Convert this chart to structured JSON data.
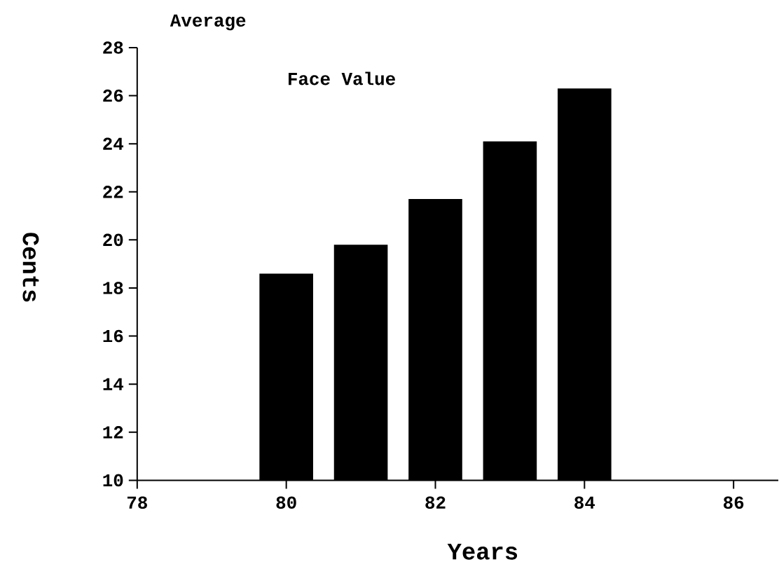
{
  "chart_data": {
    "type": "bar",
    "title": "Average",
    "subtitle": "Face Value",
    "xlabel": "Years",
    "ylabel": "Cents",
    "x": [
      80,
      81,
      82,
      83,
      84
    ],
    "values": [
      18.6,
      19.8,
      21.7,
      24.1,
      26.3
    ],
    "color": "#000000",
    "xlim": [
      78,
      86.6
    ],
    "xticks": [
      78,
      80,
      82,
      84,
      86
    ],
    "ylim": [
      10,
      28
    ],
    "yticks": [
      10,
      12,
      14,
      16,
      18,
      20,
      22,
      24,
      26,
      28
    ]
  }
}
